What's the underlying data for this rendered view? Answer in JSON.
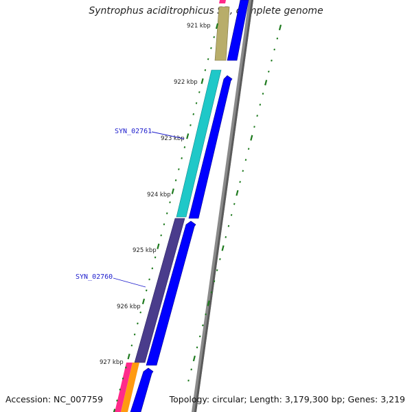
{
  "title": "Syntrophus aciditrophicus SB, complete genome",
  "footer": {
    "accession": "Accession: NC_007759",
    "summary": "Topology: circular; Length: 3,179,300 bp; Genes: 3,219"
  },
  "scale_labels": [
    "921 kbp",
    "922 kbp",
    "923 kbp",
    "924 kbp",
    "925 kbp",
    "926 kbp",
    "927 kbp"
  ],
  "gene_labels": [
    "SYN_02761",
    "SYN_02760"
  ],
  "colors": {
    "orf_blue": "#0000ff",
    "tick_green": "#1e7a1e",
    "backbone_gray": "#8a8a8a",
    "gene_label_blue": "#1a1acc",
    "cog_olive": "#b8ad6a",
    "cog_cyan": "#1fc8c8",
    "cog_purple": "#4a3c8c",
    "cog_magenta": "#ff2a8a",
    "cog_orange": "#ff9a10"
  }
}
